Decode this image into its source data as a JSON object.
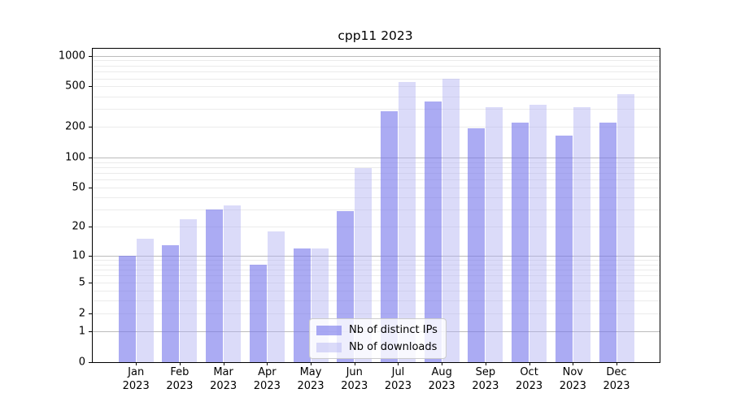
{
  "title": "cpp11 2023",
  "legend": {
    "items": [
      {
        "label": "Nb of distinct IPs",
        "color": "rgba(120,120,235,0.62)"
      },
      {
        "label": "Nb of downloads",
        "color": "rgba(175,175,241,0.45)"
      }
    ]
  },
  "chart_data": {
    "type": "bar",
    "title": "cpp11 2023",
    "yscale": "log(1+y)",
    "grid": true,
    "legend_position": "lower center",
    "categories": [
      "Jan 2023",
      "Feb 2023",
      "Mar 2023",
      "Apr 2023",
      "May 2023",
      "Jun 2023",
      "Jul 2023",
      "Aug 2023",
      "Sep 2023",
      "Oct 2023",
      "Nov 2023",
      "Dec 2023"
    ],
    "series": [
      {
        "name": "Nb of distinct IPs",
        "color": "rgba(120,120,235,0.62)",
        "values": [
          10,
          13,
          30,
          8,
          12,
          29,
          285,
          355,
          193,
          222,
          164,
          219
        ]
      },
      {
        "name": "Nb of downloads",
        "color": "rgba(175,175,241,0.45)",
        "values": [
          15,
          24,
          33,
          18,
          12,
          78,
          550,
          600,
          315,
          330,
          315,
          416
        ]
      }
    ],
    "yticks": [
      {
        "label": "1000",
        "value": 1000
      },
      {
        "label": "500",
        "value": 500
      },
      {
        "label": "200",
        "value": 200
      },
      {
        "label": "100",
        "value": 100
      },
      {
        "label": "50",
        "value": 50
      },
      {
        "label": "20",
        "value": 20
      },
      {
        "label": "10",
        "value": 10
      },
      {
        "label": "5",
        "value": 5
      },
      {
        "label": "2",
        "value": 2
      },
      {
        "label": "1",
        "value": 1
      },
      {
        "label": "0",
        "value": 0
      }
    ],
    "minor_gridline_values": [
      2,
      3,
      4,
      5,
      6,
      7,
      8,
      9,
      20,
      30,
      40,
      50,
      60,
      70,
      80,
      90,
      200,
      300,
      400,
      500,
      600,
      700,
      800,
      900
    ],
    "major_gridline_values": [
      1,
      10,
      100,
      1000
    ],
    "ylim": [
      0,
      1150
    ]
  }
}
